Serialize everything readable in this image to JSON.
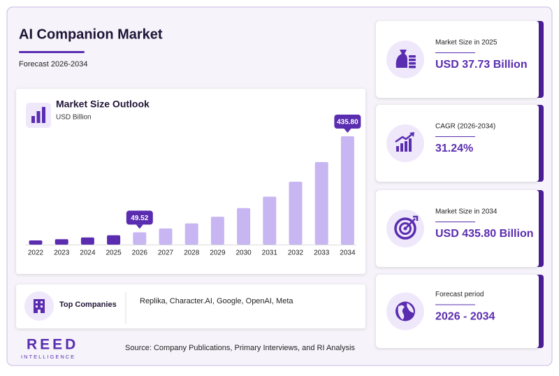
{
  "header": {
    "title": "AI Companion Market",
    "subtitle": "Forecast 2026-2034"
  },
  "chart_data": {
    "type": "bar",
    "title": "Market Size Outlook",
    "subtitle": "USD Billion",
    "categories": [
      "2022",
      "2023",
      "2024",
      "2025",
      "2026",
      "2027",
      "2028",
      "2029",
      "2030",
      "2031",
      "2032",
      "2033",
      "2034"
    ],
    "values": [
      16.7,
      21.9,
      28.75,
      37.73,
      49.52,
      64.99,
      85.29,
      111.94,
      146.91,
      192.8,
      253.03,
      332.08,
      435.8
    ],
    "value_labels": [
      null,
      null,
      null,
      null,
      "49.52",
      null,
      null,
      null,
      null,
      null,
      null,
      null,
      "435.80"
    ],
    "colors": [
      "#5a2db0",
      "#5a2db0",
      "#5a2db0",
      "#5a2db0",
      "#c8b6f2",
      "#c8b6f2",
      "#c8b6f2",
      "#c8b6f2",
      "#c8b6f2",
      "#c8b6f2",
      "#c8b6f2",
      "#c8b6f2",
      "#c8b6f2"
    ]
  },
  "companies": {
    "label": "Top Companies",
    "text": "Replika, Character.AI, Google, OpenAI, Meta"
  },
  "stats": [
    {
      "label": "Market Size in 2025",
      "value": "USD 37.73 Billion"
    },
    {
      "label": "CAGR (2026-2034)",
      "value": "31.24%"
    },
    {
      "label": "Market Size in 2034",
      "value": "USD 435.80 Billion"
    },
    {
      "label": "Forecast period",
      "value": "2026 - 2034"
    }
  ],
  "logo": {
    "name": "REED",
    "tagline": "INTELLIGENCE"
  },
  "source": "Source: Company Publications, Primary Interviews, and RI Analysis"
}
